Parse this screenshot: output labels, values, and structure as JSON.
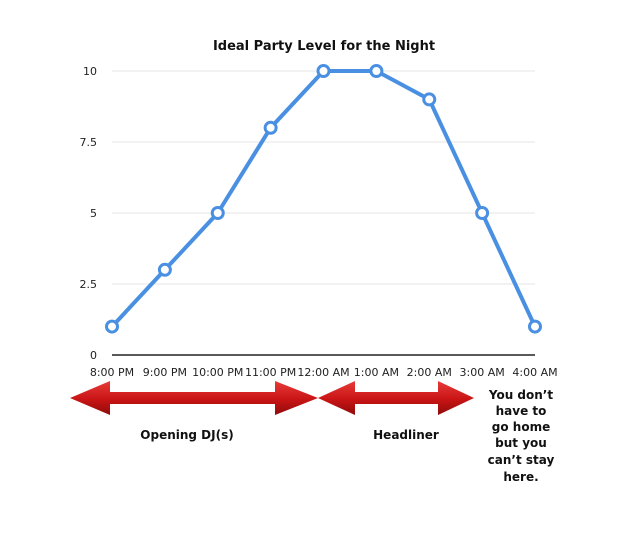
{
  "chart_data": {
    "type": "line",
    "title": "Ideal Party Level for the Night",
    "xlabel": "",
    "ylabel": "",
    "categories": [
      "8:00 PM",
      "9:00 PM",
      "10:00 PM",
      "11:00 PM",
      "12:00 AM",
      "1:00 AM",
      "2:00 AM",
      "3:00 AM",
      "4:00 AM"
    ],
    "series": [
      {
        "values": [
          1,
          3,
          5,
          8,
          10,
          10,
          9,
          5,
          1
        ]
      }
    ],
    "ylim": [
      0,
      10
    ],
    "yticks": [
      "0",
      "2.5",
      "5",
      "7.5",
      "10"
    ],
    "grid": true,
    "legend": "none"
  },
  "annotations": {
    "opening_label": "Opening DJ(s)",
    "headliner_label": "Headliner",
    "closing_note": [
      "You don’t",
      "have to",
      "go home",
      "but you",
      "can’t stay",
      "here."
    ]
  },
  "colors": {
    "line": "#4a90e2",
    "grid": "#e6e6e6",
    "arrow": "#cc1515"
  }
}
